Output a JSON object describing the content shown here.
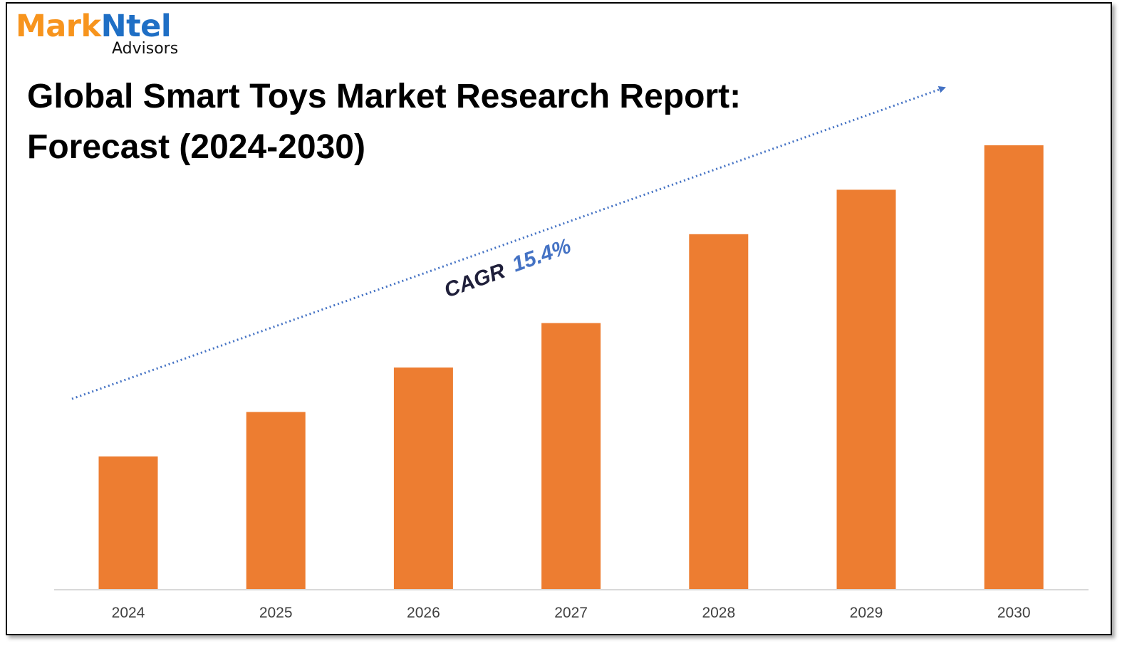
{
  "brand": {
    "name_part1": "Mark",
    "name_part2": "Ntel",
    "subtitle": "Advisors",
    "color1": "#f7941d",
    "color2": "#1f6fc5"
  },
  "title_line1": "Global Smart Toys Market Research Report:",
  "title_line2": "Forecast (2024-2030)",
  "chart_data": {
    "type": "bar",
    "title": "Global Smart Toys Market Research Report: Forecast (2024-2030)",
    "categories": [
      "2024",
      "2025",
      "2026",
      "2027",
      "2028",
      "2029",
      "2030"
    ],
    "values": [
      30,
      40,
      50,
      60,
      80,
      90,
      100
    ],
    "value_note": "relative bar heights (no axis values shown)",
    "ylim": [
      0,
      100
    ],
    "xlabel": "",
    "ylabel": "",
    "grid": false,
    "bar_color": "#ed7d31",
    "trend": {
      "label": "CAGR",
      "value": "15.4%",
      "line_color": "#4472c4",
      "label_color": "#1f1f3a",
      "value_color": "#4472c4"
    }
  }
}
